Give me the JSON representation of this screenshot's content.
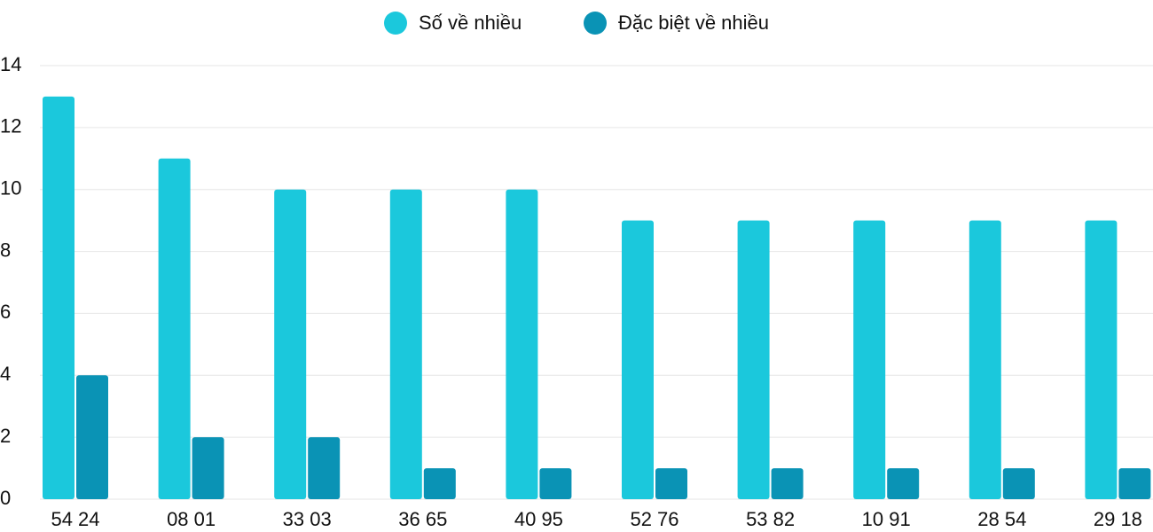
{
  "chart_data": {
    "type": "bar",
    "categories": [
      "54 24",
      "08 01",
      "33 03",
      "36 65",
      "40 95",
      "52 76",
      "53 82",
      "10 91",
      "28 54",
      "29 18"
    ],
    "series": [
      {
        "name": "Số về nhiều",
        "color": "#1bc8dc",
        "values": [
          13,
          11,
          10,
          10,
          10,
          9,
          9,
          9,
          9,
          9
        ]
      },
      {
        "name": "Đặc biệt về nhiều",
        "color": "#0a93b5",
        "values": [
          4,
          2,
          2,
          1,
          1,
          1,
          1,
          1,
          1,
          1
        ]
      }
    ],
    "ylim": [
      0,
      14
    ],
    "yticks": [
      0,
      2,
      4,
      6,
      8,
      10,
      12,
      14
    ],
    "grid": true
  }
}
